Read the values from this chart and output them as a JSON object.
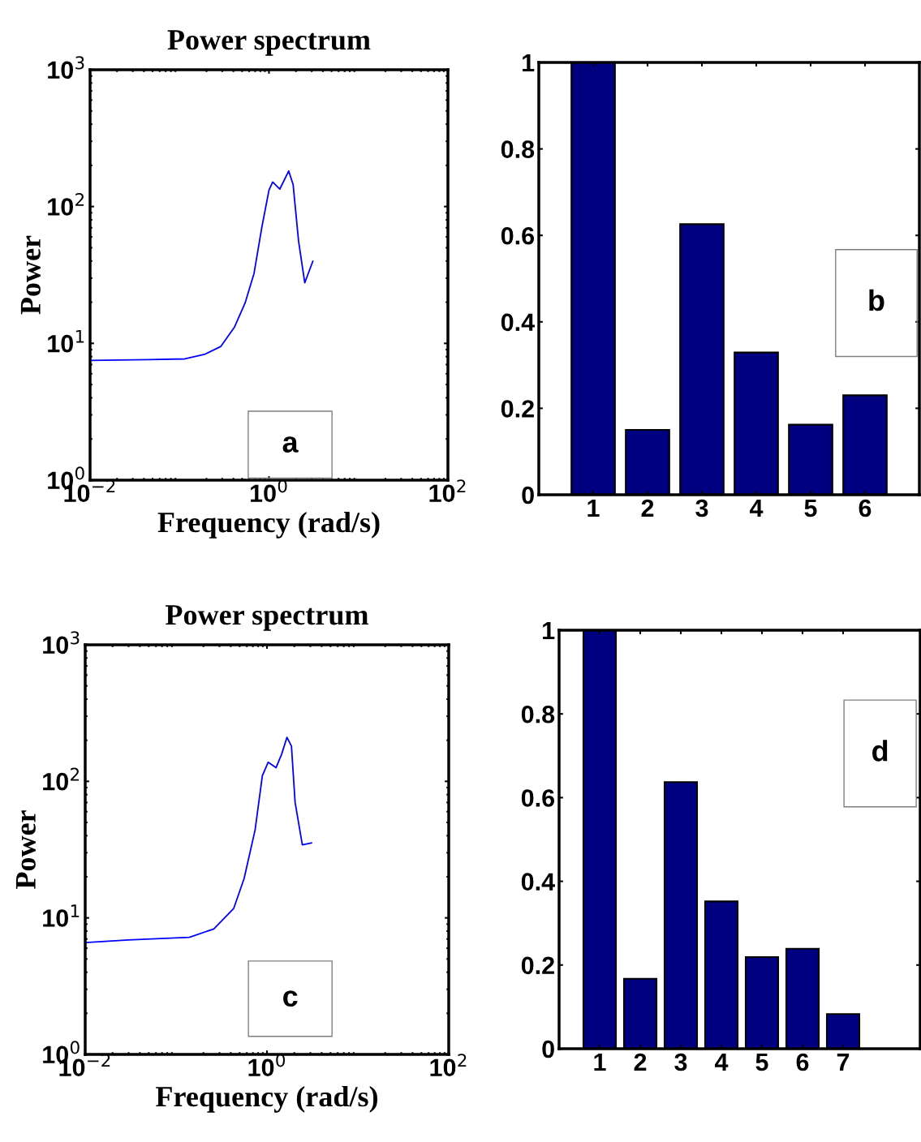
{
  "chart_data": [
    {
      "type": "line",
      "title": "Power spectrum",
      "xlabel": "Frequency (rad/s)",
      "ylabel": "Power",
      "log": "xy",
      "annotations": [
        "a"
      ],
      "series": [
        {
          "color": "#0000ff",
          "x": [
            0.01,
            0.046,
            0.115,
            0.19,
            0.29,
            0.41,
            0.54,
            0.68,
            0.83,
            1.0,
            1.1,
            1.32,
            1.66,
            1.86,
            2.14,
            2.51,
            3.09
          ],
          "values": [
            7.5,
            7.6,
            7.7,
            8.3,
            9.5,
            13.1,
            19.7,
            32.4,
            70,
            132,
            151,
            134,
            182,
            145,
            56,
            27.7,
            39.8
          ]
        }
      ],
      "xlim": [
        0.01,
        100
      ],
      "ylim": [
        1,
        1000
      ],
      "xticks": [
        {
          "value": 0.01,
          "label": "10$^{−2}$"
        },
        {
          "value": 1,
          "label": "10$^{0}$"
        },
        {
          "value": 100,
          "label": "10$^{2}$"
        }
      ],
      "yticks": [
        {
          "value": 1,
          "label": "10$^{0}$"
        },
        {
          "value": 10,
          "label": "10$^{1}$"
        },
        {
          "value": 100,
          "label": "10$^{2}$"
        },
        {
          "value": 1000,
          "label": "10$^{3}$"
        }
      ],
      "grid": false,
      "legend": false
    },
    {
      "type": "bar",
      "categories": [
        "1",
        "2",
        "3",
        "4",
        "5",
        "6"
      ],
      "values": [
        1,
        0.15,
        0.626,
        0.329,
        0.162,
        0.23
      ],
      "color": "#000080",
      "annotations": [
        "b"
      ],
      "ylim": [
        0,
        1
      ],
      "yticks": [
        0,
        0.2,
        0.4,
        0.6,
        0.8,
        1
      ],
      "grid": false,
      "legend": false
    },
    {
      "type": "line",
      "title": "Power spectrum",
      "xlabel": "Frequency (rad/s)",
      "ylabel": "Power",
      "log": "xy",
      "annotations": [
        "c"
      ],
      "series": [
        {
          "color": "#0000ff",
          "x": [
            0.01,
            0.03,
            0.14,
            0.26,
            0.43,
            0.56,
            0.74,
            0.89,
            1.03,
            1.26,
            1.45,
            1.66,
            1.86,
            2.04,
            2.45,
            3.09
          ],
          "values": [
            6.6,
            6.9,
            7.2,
            8.3,
            11.7,
            19.4,
            44,
            110,
            138,
            126,
            158,
            210,
            181,
            70,
            34.3,
            35.4
          ]
        }
      ],
      "xlim": [
        0.01,
        100
      ],
      "ylim": [
        1,
        1000
      ],
      "xticks": [
        {
          "value": 0.01,
          "label": "10$^{−2}$"
        },
        {
          "value": 1,
          "label": "10$^{0}$"
        },
        {
          "value": 100,
          "label": "10$^{2}$"
        }
      ],
      "yticks": [
        {
          "value": 1,
          "label": "10$^{0}$"
        },
        {
          "value": 10,
          "label": "10$^{1}$"
        },
        {
          "value": 100,
          "label": "10$^{2}$"
        },
        {
          "value": 1000,
          "label": "10$^{3}$"
        }
      ],
      "grid": false,
      "legend": false
    },
    {
      "type": "bar",
      "categories": [
        "1",
        "2",
        "3",
        "4",
        "5",
        "6",
        "7"
      ],
      "values": [
        1,
        0.167,
        0.637,
        0.352,
        0.219,
        0.239,
        0.083
      ],
      "color": "#000080",
      "annotations": [
        "d"
      ],
      "ylim": [
        0,
        1
      ],
      "yticks": [
        0,
        0.2,
        0.4,
        0.6,
        0.8,
        1
      ],
      "grid": false,
      "legend": false
    }
  ]
}
